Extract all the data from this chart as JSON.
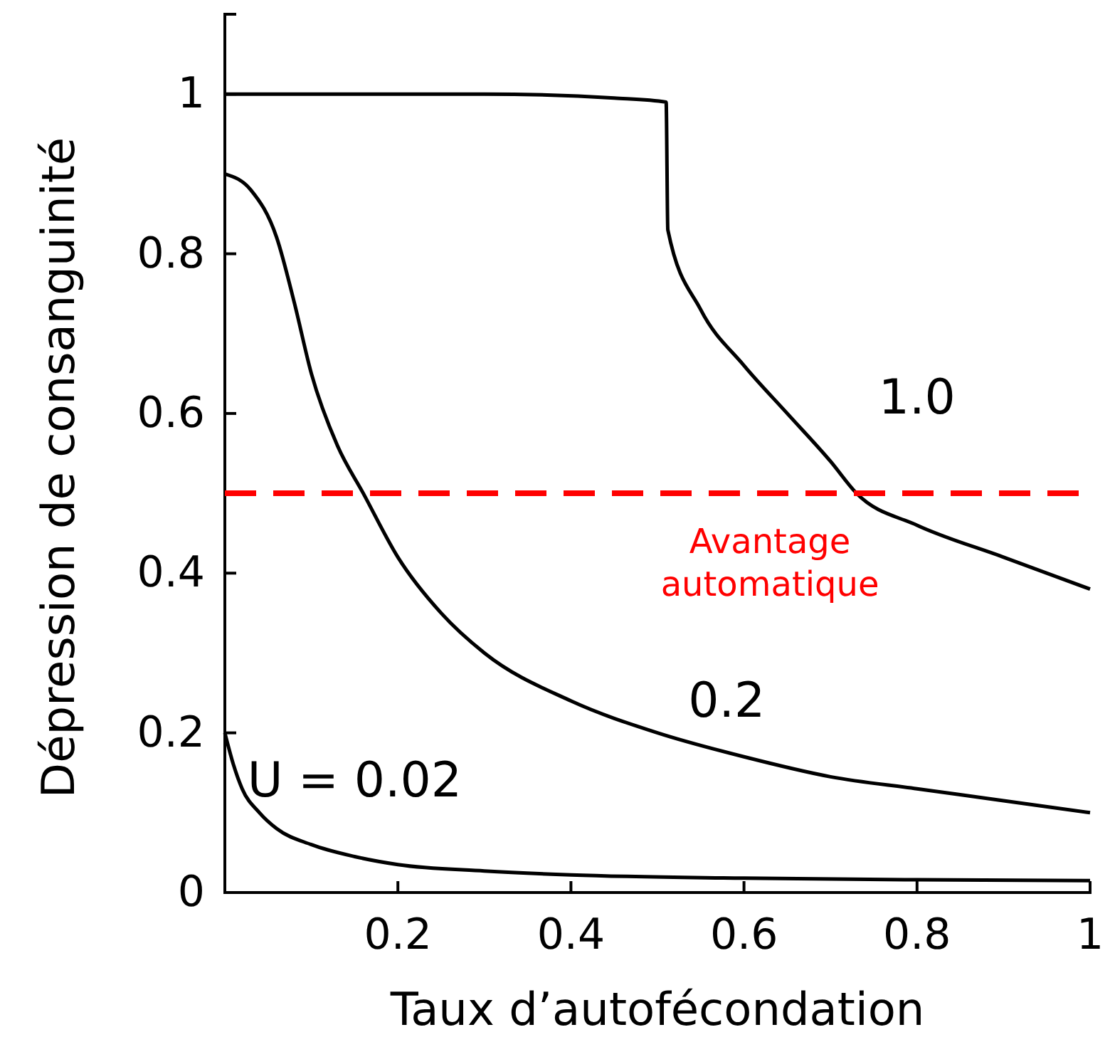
{
  "chart_data": {
    "type": "line",
    "xlabel": "Taux d’autofécondation",
    "ylabel": "Dépression de consanguinité",
    "xlim": [
      0,
      1
    ],
    "ylim": [
      0,
      1.1
    ],
    "xticks": [
      {
        "value": 0,
        "label": null
      },
      0.2,
      0.4,
      0.6,
      0.8,
      1
    ],
    "yticks": [
      0,
      0.2,
      0.4,
      0.6,
      0.8,
      1
    ],
    "grid": false,
    "marker": "none",
    "line_style": "solid",
    "series": [
      {
        "name": "1.0",
        "color": "#000000",
        "x": [
          0,
          0.3,
          0.45,
          0.51,
          0.512,
          0.55,
          0.6,
          0.65,
          0.7,
          0.73,
          0.8,
          0.9,
          1
        ],
        "values": [
          1,
          1,
          0.995,
          0.99,
          0.83,
          0.73,
          0.66,
          0.6,
          0.54,
          0.5,
          0.46,
          0.42,
          0.38
        ]
      },
      {
        "name": "0.2",
        "color": "#000000",
        "x": [
          0,
          0.03,
          0.06,
          0.08,
          0.1,
          0.13,
          0.16,
          0.2,
          0.25,
          0.3,
          0.4,
          0.5,
          0.6,
          0.7,
          0.8,
          0.9,
          1
        ],
        "values": [
          0.9,
          0.88,
          0.82,
          0.74,
          0.65,
          0.56,
          0.5,
          0.42,
          0.35,
          0.3,
          0.24,
          0.2,
          0.17,
          0.145,
          0.13,
          0.115,
          0.1
        ]
      },
      {
        "name": "U = 0.02",
        "color": "#000000",
        "x": [
          0,
          0.01,
          0.02,
          0.04,
          0.06,
          0.1,
          0.15,
          0.2,
          0.3,
          0.4,
          0.6,
          0.8,
          1
        ],
        "values": [
          0.2,
          0.16,
          0.13,
          0.1,
          0.08,
          0.06,
          0.045,
          0.035,
          0.027,
          0.022,
          0.018,
          0.016,
          0.015
        ]
      }
    ],
    "ref_lines": [
      {
        "axis": "y",
        "value": 0.5,
        "label": "Avantage automatique",
        "color": "#ff0000",
        "line_style": "dashed"
      }
    ]
  }
}
